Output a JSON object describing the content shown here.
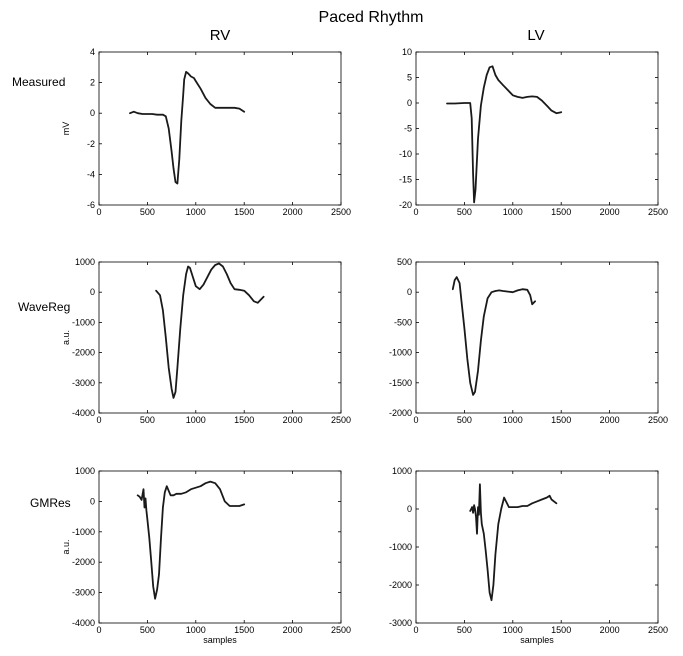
{
  "figure": {
    "title": "Paced Rhythm",
    "columns": [
      "RV",
      "LV"
    ],
    "rows": [
      "Measured",
      "WaveReg",
      "GMRes"
    ]
  },
  "colors": {
    "line": "#1a1a1a",
    "axis": "#000000",
    "background": "#ffffff"
  },
  "chart_data": [
    {
      "id": "measured-rv",
      "type": "line",
      "row": "Measured",
      "column": "RV",
      "xlabel": "",
      "ylabel": "mV",
      "xlim": [
        0,
        2500
      ],
      "ylim": [
        -6,
        4
      ],
      "xticks": [
        0,
        500,
        1000,
        1500,
        2000,
        2500
      ],
      "yticks": [
        -6,
        -4,
        -2,
        0,
        2,
        4
      ],
      "grid": false,
      "x": [
        320,
        360,
        400,
        450,
        500,
        550,
        600,
        630,
        660,
        690,
        720,
        750,
        770,
        790,
        810,
        830,
        850,
        870,
        880,
        900,
        920,
        950,
        980,
        1000,
        1050,
        1100,
        1150,
        1200,
        1300,
        1400,
        1450,
        1500
      ],
      "y": [
        0,
        0.1,
        0,
        -0.05,
        -0.05,
        -0.05,
        -0.1,
        -0.1,
        -0.1,
        -0.2,
        -1.0,
        -2.5,
        -3.6,
        -4.5,
        -4.6,
        -3.0,
        -0.5,
        1.2,
        2.2,
        2.7,
        2.6,
        2.4,
        2.3,
        2.1,
        1.6,
        1.0,
        0.6,
        0.35,
        0.35,
        0.35,
        0.3,
        0.1
      ]
    },
    {
      "id": "measured-lv",
      "type": "line",
      "row": "Measured",
      "column": "LV",
      "xlabel": "",
      "ylabel": "",
      "xlim": [
        0,
        2500
      ],
      "ylim": [
        -20,
        10
      ],
      "xticks": [
        0,
        500,
        1000,
        1500,
        2000,
        2500
      ],
      "yticks": [
        -20,
        -15,
        -10,
        -5,
        0,
        5,
        10
      ],
      "grid": false,
      "x": [
        320,
        400,
        500,
        560,
        575,
        590,
        600,
        615,
        640,
        670,
        700,
        730,
        760,
        790,
        820,
        850,
        900,
        950,
        1000,
        1050,
        1100,
        1150,
        1200,
        1250,
        1300,
        1350,
        1400,
        1450,
        1500
      ],
      "y": [
        -0.1,
        -0.1,
        0,
        0,
        -3,
        -14,
        -19.5,
        -17,
        -7,
        -0.5,
        3,
        5.5,
        7,
        7.2,
        5.5,
        4.5,
        3.5,
        2.5,
        1.5,
        1.2,
        1.0,
        1.2,
        1.3,
        1.2,
        0.5,
        -0.5,
        -1.5,
        -2.0,
        -1.8
      ]
    },
    {
      "id": "wavereg-rv",
      "type": "line",
      "row": "WaveReg",
      "column": "RV",
      "xlabel": "",
      "ylabel": "a.u.",
      "xlim": [
        0,
        2500
      ],
      "ylim": [
        -4000,
        1000
      ],
      "xticks": [
        0,
        500,
        1000,
        1500,
        2000,
        2500
      ],
      "yticks": [
        -4000,
        -3000,
        -2000,
        -1000,
        0,
        1000
      ],
      "grid": false,
      "x": [
        590,
        630,
        660,
        690,
        720,
        750,
        770,
        790,
        810,
        840,
        870,
        900,
        920,
        940,
        970,
        1000,
        1040,
        1080,
        1120,
        1160,
        1200,
        1240,
        1280,
        1320,
        1360,
        1400,
        1450,
        1500,
        1550,
        1600,
        1640,
        1670,
        1700
      ],
      "y": [
        50,
        -100,
        -600,
        -1500,
        -2500,
        -3200,
        -3500,
        -3300,
        -2500,
        -1200,
        -100,
        600,
        850,
        800,
        500,
        200,
        100,
        250,
        500,
        750,
        900,
        950,
        850,
        600,
        300,
        100,
        80,
        50,
        -100,
        -300,
        -350,
        -250,
        -150
      ]
    },
    {
      "id": "wavereg-lv",
      "type": "line",
      "row": "WaveReg",
      "column": "LV",
      "xlabel": "",
      "ylabel": "",
      "xlim": [
        0,
        2500
      ],
      "ylim": [
        -2000,
        500
      ],
      "xticks": [
        0,
        500,
        1000,
        1500,
        2000,
        2500
      ],
      "yticks": [
        -2000,
        -1500,
        -1000,
        -500,
        0,
        500
      ],
      "grid": false,
      "x": [
        380,
        400,
        420,
        450,
        470,
        500,
        530,
        560,
        590,
        610,
        640,
        670,
        700,
        740,
        780,
        820,
        860,
        900,
        950,
        1000,
        1050,
        1100,
        1150,
        1180,
        1200,
        1230
      ],
      "y": [
        50,
        200,
        250,
        150,
        -150,
        -600,
        -1100,
        -1500,
        -1700,
        -1650,
        -1300,
        -800,
        -400,
        -100,
        0,
        20,
        30,
        20,
        10,
        0,
        30,
        50,
        40,
        -50,
        -200,
        -150
      ]
    },
    {
      "id": "gmres-rv",
      "type": "line",
      "row": "GMRes",
      "column": "RV",
      "xlabel": "samples",
      "ylabel": "a.u.",
      "xlim": [
        0,
        2500
      ],
      "ylim": [
        -4000,
        1000
      ],
      "xticks": [
        0,
        500,
        1000,
        1500,
        2000,
        2500
      ],
      "yticks": [
        -4000,
        -3000,
        -2000,
        -1000,
        0,
        1000
      ],
      "grid": false,
      "x": [
        400,
        420,
        440,
        460,
        470,
        480,
        490,
        500,
        520,
        540,
        560,
        580,
        600,
        620,
        640,
        660,
        680,
        700,
        720,
        740,
        770,
        800,
        850,
        900,
        950,
        1000,
        1050,
        1100,
        1150,
        1200,
        1250,
        1300,
        1350,
        1400,
        1450,
        1500
      ],
      "y": [
        200,
        150,
        50,
        400,
        -200,
        100,
        -300,
        -600,
        -1200,
        -2000,
        -2800,
        -3200,
        -2900,
        -2400,
        -1200,
        -200,
        300,
        500,
        350,
        200,
        200,
        250,
        250,
        300,
        400,
        450,
        500,
        600,
        650,
        600,
        400,
        0,
        -150,
        -150,
        -150,
        -100
      ]
    },
    {
      "id": "gmres-lv",
      "type": "line",
      "row": "GMRes",
      "column": "LV",
      "xlabel": "samples",
      "ylabel": "",
      "xlim": [
        0,
        2500
      ],
      "ylim": [
        -3000,
        1000
      ],
      "xticks": [
        0,
        500,
        1000,
        1500,
        2000,
        2500
      ],
      "yticks": [
        -3000,
        -2000,
        -1000,
        0,
        1000
      ],
      "grid": false,
      "x": [
        560,
        570,
        580,
        590,
        600,
        610,
        620,
        630,
        640,
        650,
        660,
        670,
        680,
        700,
        720,
        740,
        760,
        780,
        800,
        820,
        850,
        880,
        910,
        930,
        960,
        1000,
        1050,
        1100,
        1150,
        1200,
        1250,
        1300,
        1350,
        1380,
        1400,
        1450
      ],
      "y": [
        -50,
        0,
        50,
        -100,
        100,
        0,
        -200,
        -650,
        50,
        -150,
        650,
        -100,
        -400,
        -650,
        -1100,
        -1600,
        -2200,
        -2400,
        -2000,
        -1200,
        -400,
        0,
        300,
        200,
        50,
        50,
        50,
        80,
        80,
        150,
        200,
        250,
        300,
        350,
        250,
        150
      ]
    }
  ]
}
